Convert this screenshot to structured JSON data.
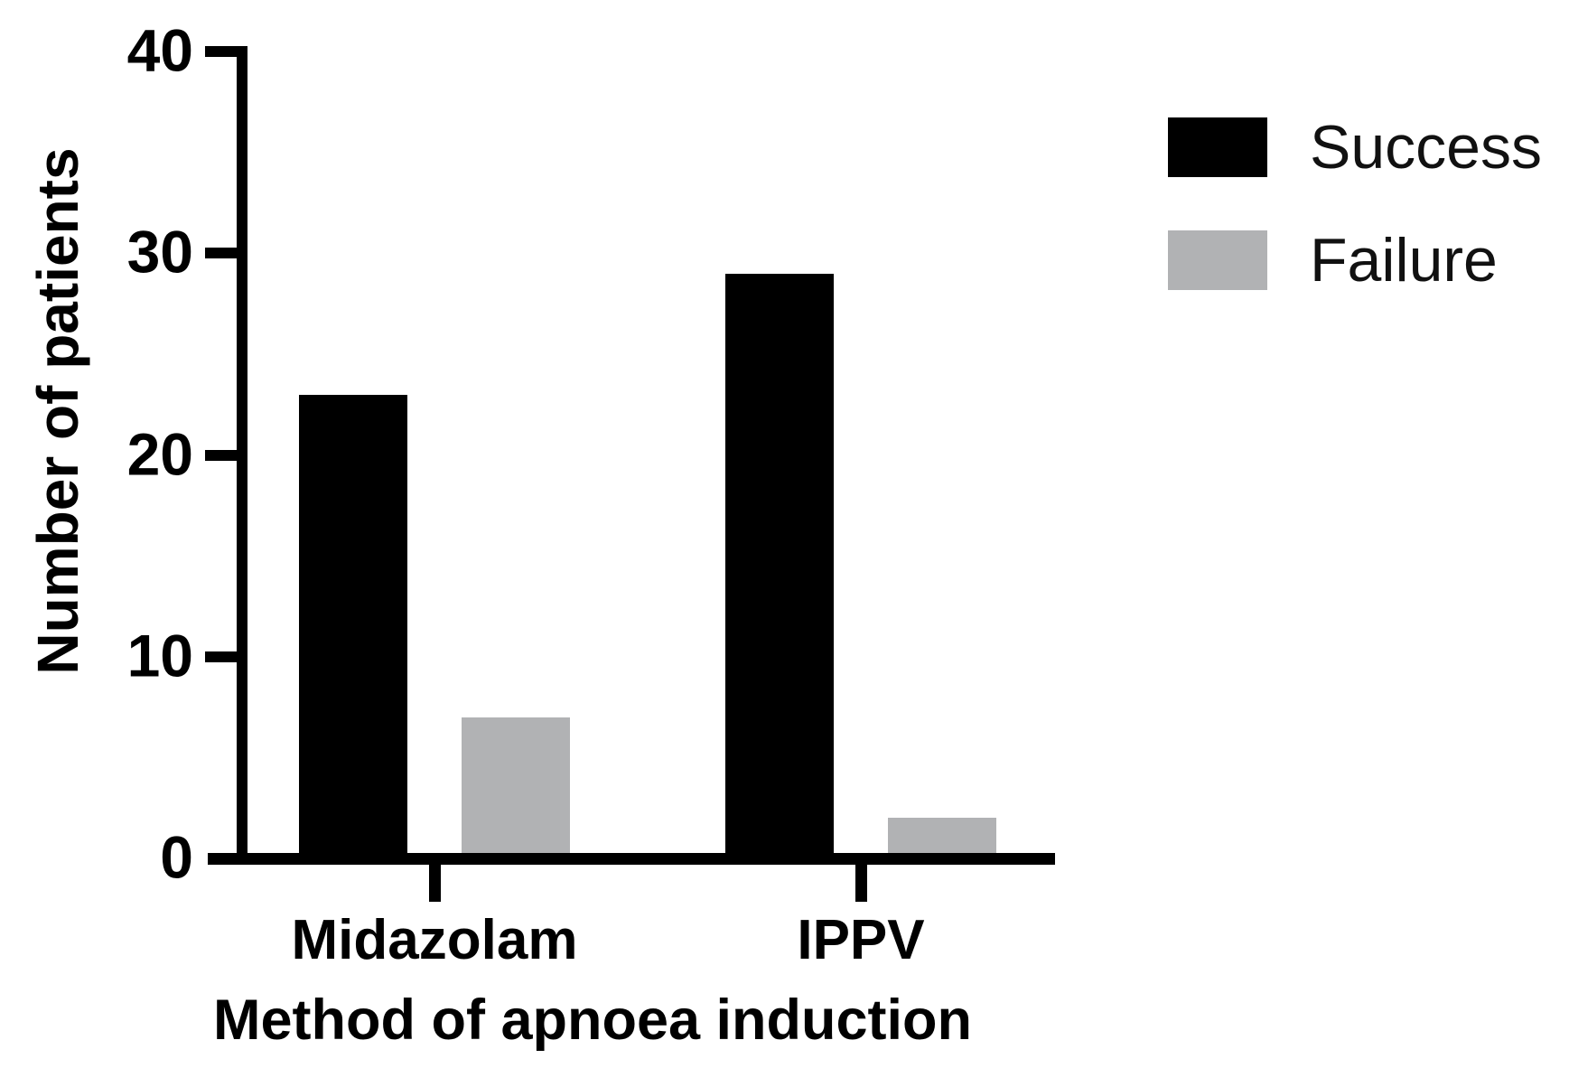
{
  "chart_data": {
    "type": "bar",
    "title": "",
    "xlabel": "Method of apnoea induction",
    "ylabel": "Number of patients",
    "categories": [
      "Midazolam",
      "IPPV"
    ],
    "series": [
      {
        "name": "Success",
        "color": "#000000",
        "values": [
          23,
          29
        ]
      },
      {
        "name": "Failure",
        "color": "#b1b2b4",
        "values": [
          7,
          2
        ]
      }
    ],
    "y_axis": {
      "min": 0,
      "max": 40,
      "ticks": [
        0,
        10,
        20,
        30,
        40
      ]
    },
    "legend": {
      "position": "top-right",
      "entries": [
        "Success",
        "Failure"
      ]
    },
    "grid": false,
    "axis_color": "#000000",
    "background": "#ffffff"
  }
}
